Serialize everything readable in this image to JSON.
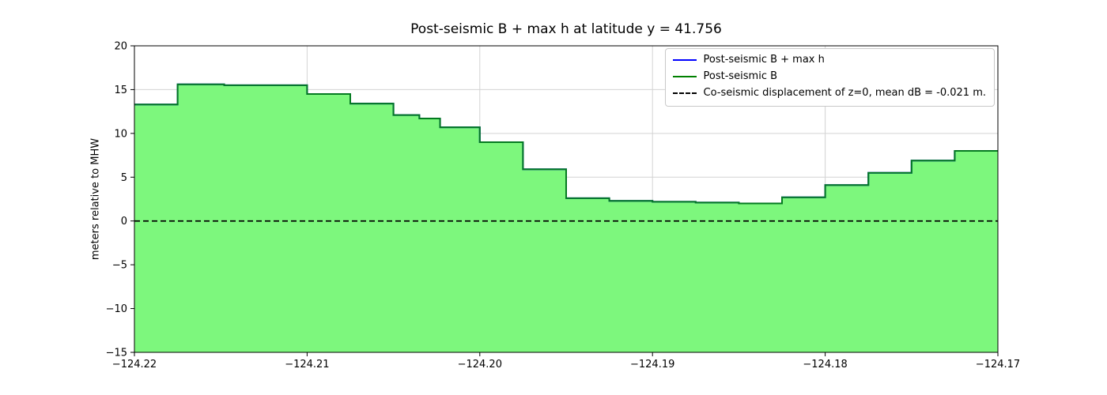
{
  "chart_data": {
    "type": "area",
    "title": "Post-seismic B + max h at latitude y = 41.756",
    "xlabel": "",
    "ylabel": "meters relative to MHW",
    "xlim": [
      -124.22,
      -124.17
    ],
    "ylim": [
      -15,
      20
    ],
    "grid": true,
    "legend_position": "upper right",
    "xticks": [
      -124.22,
      -124.21,
      -124.2,
      -124.19,
      -124.18,
      -124.17
    ],
    "xtick_labels": [
      "−124.22",
      "−124.21",
      "−124.20",
      "−124.19",
      "−124.18",
      "−124.17"
    ],
    "yticks": [
      20,
      15,
      10,
      5,
      0,
      -5,
      -10,
      -15
    ],
    "ytick_labels": [
      "20",
      "15",
      "10",
      "5",
      "0",
      "−5",
      "−10",
      "−15"
    ],
    "zero_line_y": 0,
    "mean_dB_m": -0.021,
    "step_edges_x": [
      -124.22,
      -124.2175,
      -124.2148,
      -124.21,
      -124.2075,
      -124.205,
      -124.2035,
      -124.2023,
      -124.2,
      -124.1975,
      -124.195,
      -124.1925,
      -124.19,
      -124.1875,
      -124.185,
      -124.1825,
      -124.18,
      -124.1775,
      -124.175,
      -124.1725,
      -124.17
    ],
    "step_values_y": [
      13.3,
      15.6,
      15.5,
      14.5,
      13.4,
      12.1,
      11.7,
      10.7,
      9.0,
      5.9,
      2.6,
      2.3,
      2.2,
      2.1,
      2.0,
      2.7,
      4.1,
      5.5,
      6.9,
      8.0
    ],
    "series": [
      {
        "name": "Post-seismic B + max h",
        "color": "#0000ff",
        "style": "solid"
      },
      {
        "name": "Post-seismic B",
        "color": "#008000",
        "style": "solid"
      },
      {
        "name": "Co-seismic displacement of z=0, mean dB = -0.021 m.",
        "color": "#000000",
        "style": "dashed"
      }
    ],
    "colors": {
      "fill": "#7df77d",
      "line_blue": "#0000ff",
      "line_green": "#047a20",
      "zero_line": "#000000",
      "grid": "#d3d3d3",
      "frame": "#000000"
    }
  }
}
